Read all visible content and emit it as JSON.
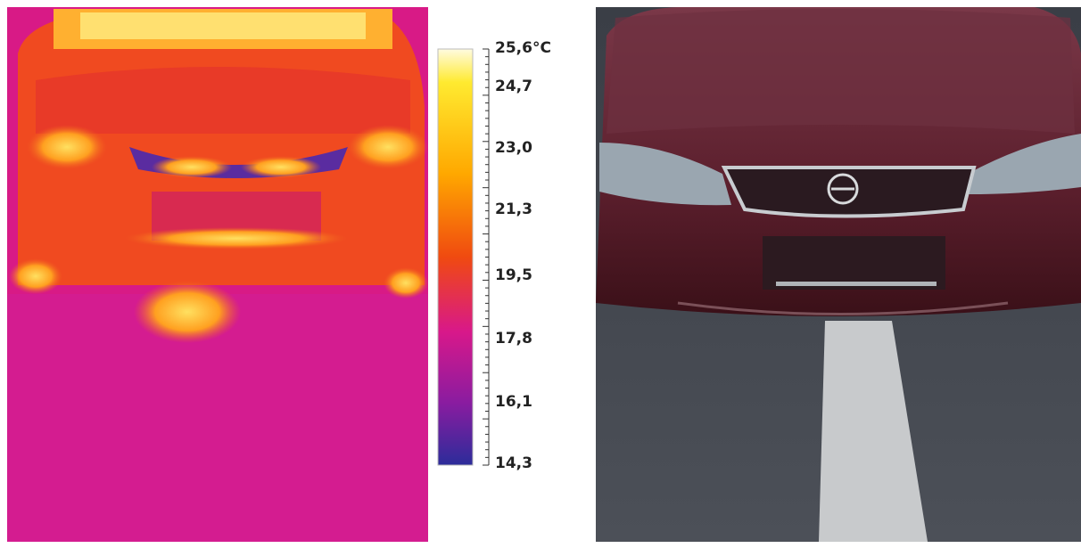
{
  "scale": {
    "labels": [
      "25,6°C",
      "24,7",
      "23,0",
      "21,3",
      "19,5",
      "17,8",
      "16,1",
      "14,3"
    ]
  }
}
